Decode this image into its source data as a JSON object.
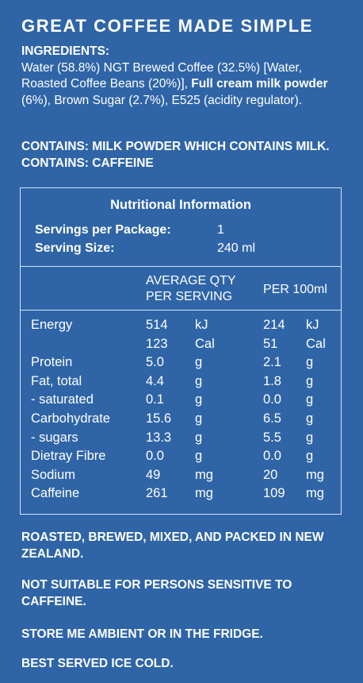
{
  "headline": "GREAT COFFEE MADE SIMPLE",
  "ingredients": {
    "label": "INGREDIENTS:",
    "text_1": "Water (58.8%) NGT Brewed Coffee (32.5%) [Water, Roasted Coffee Beans (20%)], ",
    "bold_1": "Full cream milk powder",
    "text_2": " (6%), Brown Sugar (2.7%), E525 (acidity regulator)."
  },
  "contains": "CONTAINS: MILK POWDER WHICH CONTAINS MILK. CONTAINS: CAFFEINE",
  "nutrition": {
    "title": "Nutritional Information",
    "servings_label": "Servings per Package:",
    "servings_value": "1",
    "serving_size_label": "Serving Size:",
    "serving_size_value": "240 ml",
    "col_per_serving_1": "AVERAGE QTY",
    "col_per_serving_2": "PER SERVING",
    "col_per_100": "PER 100ml",
    "rows": [
      {
        "name": "Energy",
        "v1": "514",
        "u1": "kJ",
        "v2": "214",
        "u2": "kJ"
      },
      {
        "name": "",
        "v1": "123",
        "u1": "Cal",
        "v2": "51",
        "u2": "Cal"
      },
      {
        "name": "Protein",
        "v1": "5.0",
        "u1": "g",
        "v2": "2.1",
        "u2": "g"
      },
      {
        "name": "Fat, total",
        "v1": "4.4",
        "u1": "g",
        "v2": "1.8",
        "u2": "g"
      },
      {
        "name": "- saturated",
        "v1": "0.1",
        "u1": "g",
        "v2": "0.0",
        "u2": "g"
      },
      {
        "name": "Carbohydrate",
        "v1": "15.6",
        "u1": "g",
        "v2": "6.5",
        "u2": "g"
      },
      {
        "name": "- sugars",
        "v1": "13.3",
        "u1": "g",
        "v2": "5.5",
        "u2": "g"
      },
      {
        "name": "Dietray Fibre",
        "v1": "0.0",
        "u1": "g",
        "v2": "0.0",
        "u2": "g"
      },
      {
        "name": "Sodium",
        "v1": "49",
        "u1": "mg",
        "v2": "20",
        "u2": "mg"
      },
      {
        "name": "Caffeine",
        "v1": "261",
        "u1": "mg",
        "v2": "109",
        "u2": "mg"
      }
    ]
  },
  "footer": {
    "origin": "ROASTED, BREWED, MIXED, AND PACKED IN NEW ZEALAND.",
    "warning": "NOT SUITABLE FOR PERSONS SENSITIVE TO CAFFEINE.",
    "storage": "STORE ME AMBIENT OR IN THE FRIDGE.",
    "serving": "BEST SERVED ICE COLD."
  },
  "colors": {
    "background": "#2f65a7",
    "text": "#ffffff",
    "rule": "#d6e2f2"
  }
}
